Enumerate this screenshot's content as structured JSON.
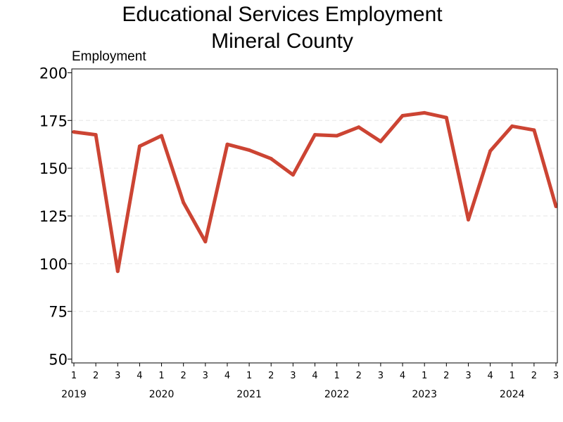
{
  "chart_data": {
    "type": "line",
    "title": [
      "Educational Services Employment",
      "Mineral County"
    ],
    "xlabel": "",
    "ylabel": "Employment",
    "ylim": [
      48,
      202
    ],
    "yticks": [
      50,
      75,
      100,
      125,
      150,
      175,
      200
    ],
    "grid": true,
    "legend": "none",
    "color": "#cc4433",
    "x": [
      "1",
      "2",
      "3",
      "4",
      "1",
      "2",
      "3",
      "4",
      "1",
      "2",
      "3",
      "4",
      "1",
      "2",
      "3",
      "4",
      "1",
      "2",
      "3",
      "4",
      "1",
      "2",
      "3"
    ],
    "years": [
      "2019",
      "2020",
      "2021",
      "2022",
      "2023",
      "2024"
    ],
    "series": [
      {
        "values": [
          169,
          167.5,
          96,
          161.5,
          167,
          132,
          111.5,
          162.5,
          159.5,
          155,
          146.5,
          167.5,
          167,
          171.5,
          164,
          177.5,
          179,
          176.5,
          123,
          159,
          172,
          170,
          130
        ]
      }
    ]
  }
}
